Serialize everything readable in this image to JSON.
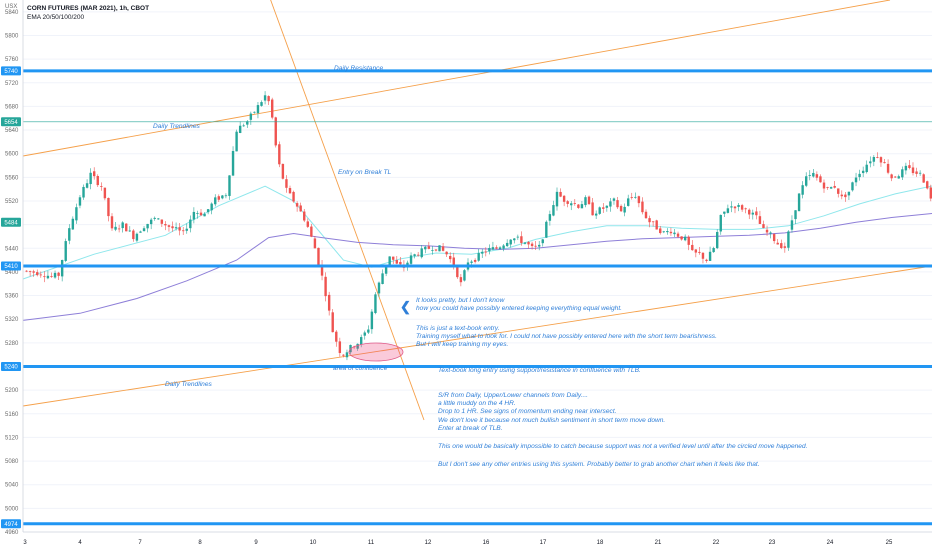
{
  "header": {
    "symbol_title": "CORN FUTURES (MAR 2021), 1h, CBOT",
    "indicator": "EMA 20/50/100/200",
    "currency": "USX"
  },
  "chart_data": {
    "type": "candlestick",
    "ylim": [
      4960,
      5860
    ],
    "y_ticks": [
      "5840",
      "5800",
      "5760",
      "5720",
      "5680",
      "5640",
      "5600",
      "5560",
      "5520",
      "5480",
      "5440",
      "5400",
      "5360",
      "5320",
      "5280",
      "5240",
      "5200",
      "5160",
      "5120",
      "5080",
      "5040",
      "5000",
      "4960"
    ],
    "x_ticks": [
      "3",
      "4",
      "7",
      "8",
      "9",
      "10",
      "11",
      "12",
      "16",
      "17",
      "18",
      "21",
      "22",
      "23",
      "24",
      "25"
    ],
    "price_badges": [
      {
        "label": "5740",
        "price": 5740,
        "color": "#2196f3"
      },
      {
        "label": "5654",
        "price": 5654,
        "color": "#26a69a"
      },
      {
        "label": "5484",
        "price": 5484,
        "color": "#26a69a"
      },
      {
        "label": "5410",
        "price": 5410,
        "color": "#2196f3"
      },
      {
        "label": "5240",
        "price": 5240,
        "color": "#2196f3"
      },
      {
        "label": "4974",
        "price": 4974,
        "color": "#2196f3"
      }
    ],
    "horizontal_levels": [
      {
        "price": 5740,
        "color": "#2196f3",
        "width": 3
      },
      {
        "price": 5410,
        "color": "#2196f3",
        "width": 3
      },
      {
        "price": 5240,
        "color": "#2196f3",
        "width": 3
      },
      {
        "price": 4974,
        "color": "#2196f3",
        "width": 3
      },
      {
        "price": 5654,
        "color": "#26a69a",
        "width": 0.6
      }
    ],
    "trendlines": [
      {
        "from": [
          3,
          5588
        ],
        "to": [
          25.9,
          5880
        ],
        "color": "#f5a04a"
      },
      {
        "from": [
          3,
          5140
        ],
        "to": [
          25.9,
          5398
        ],
        "color": "#f5a04a"
      },
      {
        "from": [
          9.25,
          5900
        ],
        "to": [
          12.05,
          5128
        ],
        "color": "#f5a04a"
      }
    ],
    "annotations": {
      "daily_resistance": "Daily Resistance",
      "daily_trendlines_top": "Daily Trendlines",
      "daily_trendlines_bottom": "Daily Trendlines",
      "entry_break_tl": "Entry on Break TL",
      "area_of_confluence": "area of confluence",
      "arrow_glyph": "❮",
      "note_1": "It looks pretty, but I don't know\nhow you could have possibly entered keeping everything equal weight.",
      "note_2": "This is just a text-book entry.\nTraining myself what to look for. I could not have possibly entered here with the short term bearishness.\nBut I will keep training my eyes.",
      "note_3": "Text-book long entry using support/resistance in confluence with TLB.",
      "note_4": "S/R from Daily, Upper/Lower channels from Daily....\na little muddy on the 4 HR.\nDrop to 1 HR. See signs of momentum ending near intersect.\nWe don't love it because not much bullish sentiment in short term move down.\nEnter at break of TLB.",
      "note_5": "This one would be basically impossible to catch because support was not a verified level until after the circled move happened.",
      "note_6": "But I don't see any other entries using this system. Probably better to grab another chart when it feels like that."
    },
    "colors": {
      "up": "#26a69a",
      "down": "#ef5350",
      "ema_fast": "#8fe7ec",
      "ema_slow": "#8e7fd8",
      "level": "#2196f3",
      "trend": "#f5a04a",
      "note": "#2f7fd8"
    },
    "close_path": [
      [
        3.0,
        5402
      ],
      [
        3.5,
        5398
      ],
      [
        3.8,
        5392
      ],
      [
        4.0,
        5395
      ],
      [
        4.3,
        5475
      ],
      [
        4.6,
        5528
      ],
      [
        4.9,
        5565
      ],
      [
        5.2,
        5545
      ],
      [
        5.5,
        5470
      ],
      [
        5.8,
        5480
      ],
      [
        6.1,
        5460
      ],
      [
        6.4,
        5478
      ],
      [
        6.7,
        5490
      ],
      [
        7.0,
        5480
      ],
      [
        7.5,
        5465
      ],
      [
        7.8,
        5502
      ],
      [
        8.1,
        5498
      ],
      [
        8.4,
        5522
      ],
      [
        8.7,
        5532
      ],
      [
        9.0,
        5640
      ],
      [
        9.3,
        5655
      ],
      [
        9.6,
        5680
      ],
      [
        9.85,
        5702
      ],
      [
        10.0,
        5660
      ],
      [
        10.15,
        5590
      ],
      [
        10.4,
        5538
      ],
      [
        10.7,
        5512
      ],
      [
        10.95,
        5485
      ],
      [
        11.2,
        5440
      ],
      [
        11.45,
        5380
      ],
      [
        11.7,
        5300
      ],
      [
        11.95,
        5258
      ],
      [
        12.2,
        5272
      ],
      [
        12.45,
        5282
      ],
      [
        12.7,
        5305
      ],
      [
        12.9,
        5362
      ],
      [
        13.1,
        5398
      ],
      [
        13.3,
        5428
      ],
      [
        13.5,
        5412
      ],
      [
        13.7,
        5408
      ],
      [
        13.9,
        5425
      ],
      [
        14.1,
        5432
      ],
      [
        14.3,
        5438
      ],
      [
        14.5,
        5442
      ],
      [
        14.7,
        5440
      ],
      [
        14.9,
        5430
      ],
      [
        15.1,
        5412
      ],
      [
        15.3,
        5380
      ],
      [
        15.5,
        5418
      ],
      [
        15.7,
        5422
      ],
      [
        15.9,
        5432
      ],
      [
        16.1,
        5438
      ],
      [
        16.3,
        5440
      ],
      [
        16.5,
        5448
      ],
      [
        16.7,
        5458
      ],
      [
        16.9,
        5455
      ],
      [
        17.1,
        5450
      ],
      [
        17.3,
        5440
      ],
      [
        17.5,
        5442
      ],
      [
        17.6,
        5460
      ],
      [
        17.8,
        5500
      ],
      [
        18.0,
        5532
      ],
      [
        18.2,
        5522
      ],
      [
        18.4,
        5518
      ],
      [
        18.6,
        5512
      ],
      [
        18.8,
        5522
      ],
      [
        19.0,
        5500
      ],
      [
        19.2,
        5505
      ],
      [
        19.4,
        5510
      ],
      [
        19.6,
        5520
      ],
      [
        19.8,
        5502
      ],
      [
        20.0,
        5522
      ],
      [
        20.2,
        5530
      ],
      [
        20.4,
        5502
      ],
      [
        20.6,
        5485
      ],
      [
        20.8,
        5475
      ],
      [
        21.0,
        5466
      ],
      [
        21.2,
        5470
      ],
      [
        21.4,
        5462
      ],
      [
        21.6,
        5455
      ],
      [
        21.8,
        5432
      ],
      [
        22.0,
        5430
      ],
      [
        22.2,
        5420
      ],
      [
        22.4,
        5440
      ],
      [
        22.6,
        5492
      ],
      [
        22.8,
        5510
      ],
      [
        23.0,
        5512
      ],
      [
        23.2,
        5508
      ],
      [
        23.4,
        5502
      ],
      [
        23.6,
        5492
      ],
      [
        23.8,
        5470
      ],
      [
        24.0,
        5462
      ],
      [
        24.2,
        5448
      ],
      [
        24.4,
        5442
      ],
      [
        24.6,
        5488
      ],
      [
        24.8,
        5530
      ],
      [
        25.0,
        5558
      ],
      [
        25.2,
        5565
      ],
      [
        25.4,
        5552
      ],
      [
        25.6,
        5540
      ],
      [
        25.8,
        5545
      ],
      [
        26.0,
        5525
      ],
      [
        26.2,
        5536
      ],
      [
        26.4,
        5562
      ],
      [
        26.6,
        5575
      ],
      [
        26.8,
        5590
      ],
      [
        27.0,
        5598
      ],
      [
        27.2,
        5582
      ],
      [
        27.4,
        5560
      ],
      [
        27.6,
        5565
      ],
      [
        27.8,
        5575
      ],
      [
        28.0,
        5570
      ],
      [
        28.2,
        5565
      ],
      [
        28.4,
        5545
      ],
      [
        28.6,
        5500
      ],
      [
        28.75,
        5470
      ]
    ],
    "ema_fast_path": [
      [
        3,
        5388
      ],
      [
        5,
        5430
      ],
      [
        7,
        5462
      ],
      [
        8.5,
        5512
      ],
      [
        9.8,
        5545
      ],
      [
        10.6,
        5520
      ],
      [
        11.3,
        5470
      ],
      [
        12.0,
        5420
      ],
      [
        12.8,
        5408
      ],
      [
        13.6,
        5422
      ],
      [
        14.6,
        5432
      ],
      [
        15.6,
        5430
      ],
      [
        16.6,
        5440
      ],
      [
        17.4,
        5455
      ],
      [
        18.4,
        5468
      ],
      [
        19.4,
        5478
      ],
      [
        20.5,
        5478
      ],
      [
        21.5,
        5474
      ],
      [
        22.5,
        5472
      ],
      [
        23.5,
        5472
      ],
      [
        24.5,
        5478
      ],
      [
        25.5,
        5495
      ],
      [
        26.5,
        5515
      ],
      [
        27.5,
        5532
      ],
      [
        28.75,
        5548
      ]
    ],
    "ema_slow_path": [
      [
        3,
        5318
      ],
      [
        4.6,
        5330
      ],
      [
        6.2,
        5355
      ],
      [
        7.6,
        5385
      ],
      [
        9.0,
        5420
      ],
      [
        9.9,
        5458
      ],
      [
        10.6,
        5465
      ],
      [
        11.4,
        5458
      ],
      [
        12.4,
        5450
      ],
      [
        13.4,
        5446
      ],
      [
        14.4,
        5444
      ],
      [
        15.4,
        5440
      ],
      [
        16.4,
        5438
      ],
      [
        17.4,
        5440
      ],
      [
        18.4,
        5446
      ],
      [
        19.4,
        5452
      ],
      [
        20.4,
        5456
      ],
      [
        21.4,
        5458
      ],
      [
        22.4,
        5460
      ],
      [
        23.4,
        5462
      ],
      [
        24.4,
        5466
      ],
      [
        25.4,
        5474
      ],
      [
        26.4,
        5484
      ],
      [
        27.4,
        5492
      ],
      [
        28.75,
        5500
      ]
    ]
  }
}
